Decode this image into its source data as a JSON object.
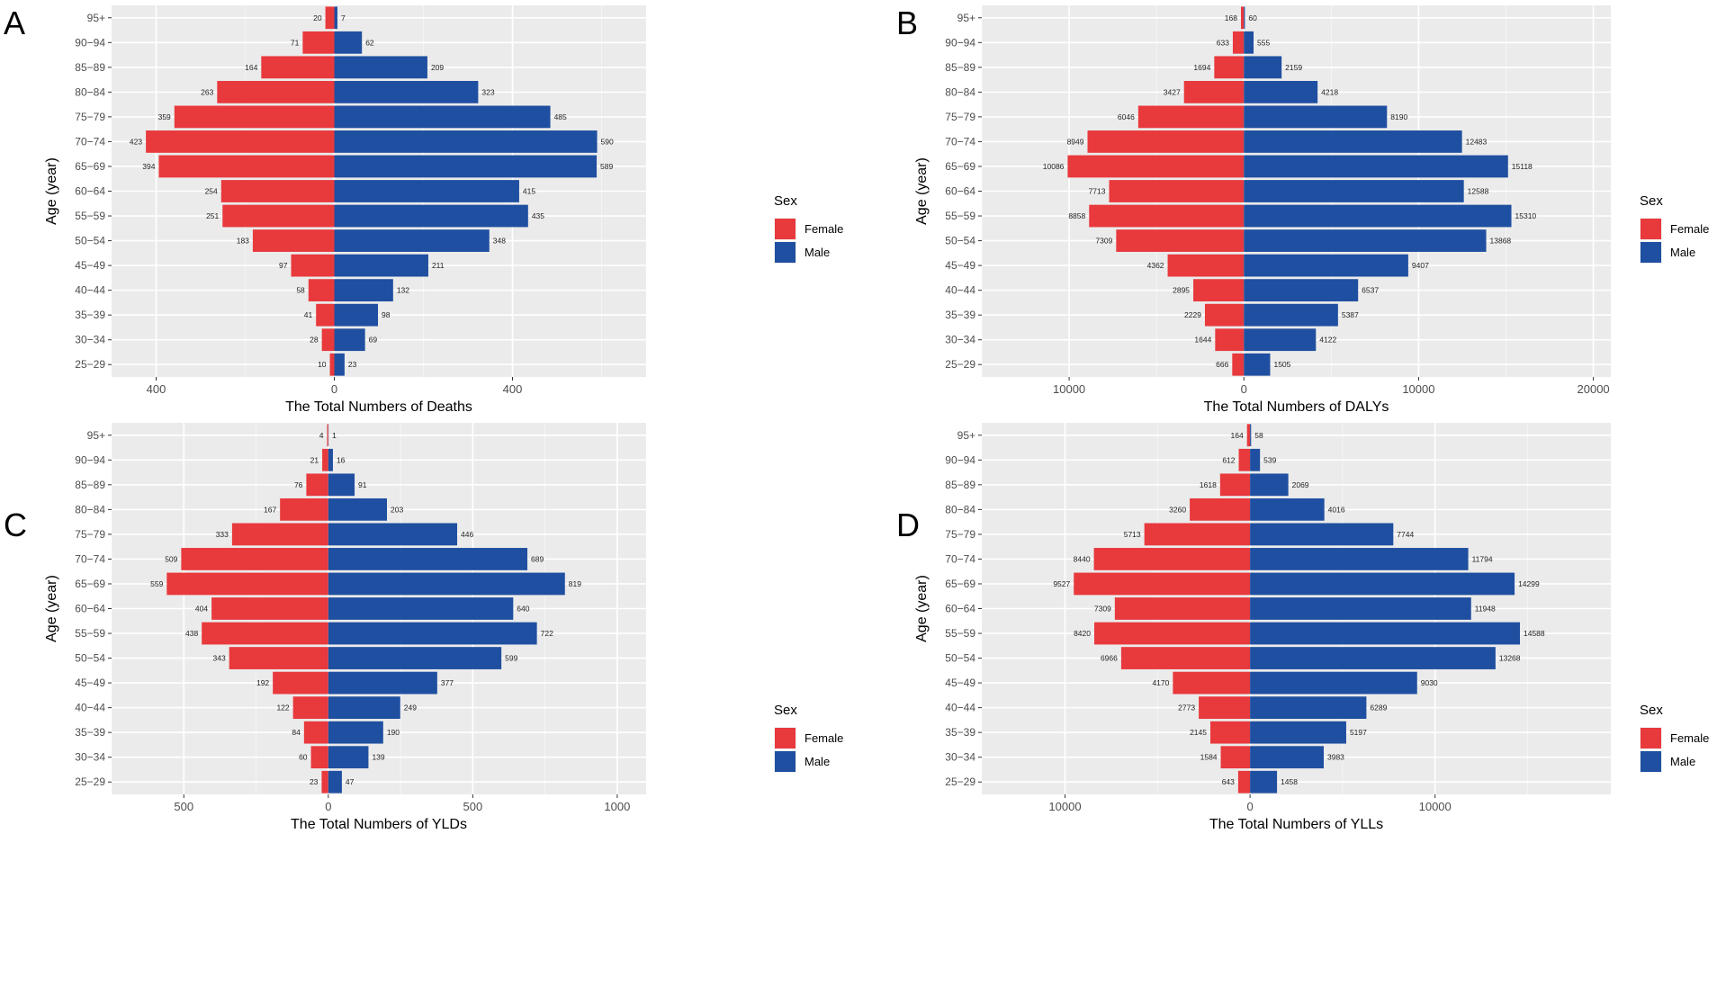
{
  "chart_data": [
    {
      "type": "bar",
      "panel": "A",
      "orientation": "horizontal-population-pyramid",
      "categories": [
        "25-29",
        "30-34",
        "35-39",
        "40-44",
        "45-49",
        "50-54",
        "55-59",
        "60-64",
        "65-69",
        "70-74",
        "75-79",
        "80-84",
        "85-89",
        "90-94",
        "95+"
      ],
      "category_labels": [
        "25−29",
        "30−34",
        "35−39",
        "40−44",
        "45−49",
        "50−54",
        "55−59",
        "60−64",
        "65−69",
        "70−74",
        "75−79",
        "80−84",
        "85−89",
        "90−94",
        "95+"
      ],
      "series": [
        {
          "name": "Female",
          "color": "#e8393c",
          "values": [
            10,
            28,
            41,
            58,
            97,
            183,
            251,
            254,
            394,
            423,
            359,
            263,
            164,
            71,
            20
          ]
        },
        {
          "name": "Male",
          "color": "#1f4fa0",
          "values": [
            23,
            69,
            98,
            132,
            211,
            348,
            435,
            415,
            589,
            590,
            485,
            323,
            209,
            62,
            7
          ]
        }
      ],
      "xlim": [
        -500,
        700
      ],
      "x_ticks": [
        -400,
        0,
        400
      ],
      "x_tick_labels": [
        "400",
        "0",
        "400"
      ],
      "xlabel": "The Total Numbers of Deaths",
      "ylabel": "Age (year)",
      "legend_title": "Sex",
      "legend_position": "right"
    },
    {
      "type": "bar",
      "panel": "B",
      "orientation": "horizontal-population-pyramid",
      "categories": [
        "25-29",
        "30-34",
        "35-39",
        "40-44",
        "45-49",
        "50-54",
        "55-59",
        "60-64",
        "65-69",
        "70-74",
        "75-79",
        "80-84",
        "85-89",
        "90-94",
        "95+"
      ],
      "category_labels": [
        "25−29",
        "30−34",
        "35−39",
        "40−44",
        "45−49",
        "50−54",
        "55−59",
        "60−64",
        "65−69",
        "70−74",
        "75−79",
        "80−84",
        "85−89",
        "90−94",
        "95+"
      ],
      "series": [
        {
          "name": "Female",
          "color": "#e8393c",
          "values": [
            666,
            1644,
            2229,
            2895,
            4362,
            7309,
            8858,
            7713,
            10086,
            8949,
            6046,
            3427,
            1694,
            633,
            168
          ]
        },
        {
          "name": "Male",
          "color": "#1f4fa0",
          "values": [
            1505,
            4122,
            5387,
            6537,
            9407,
            13868,
            15310,
            12588,
            15118,
            12483,
            8190,
            4218,
            2159,
            555,
            60
          ]
        }
      ],
      "xlim": [
        -15000,
        21000
      ],
      "x_ticks": [
        -10000,
        0,
        10000,
        20000
      ],
      "x_tick_labels": [
        "10000",
        "0",
        "10000",
        "20000"
      ],
      "xlabel": "The Total Numbers of DALYs",
      "ylabel": "Age (year)",
      "legend_title": "Sex",
      "legend_position": "right"
    },
    {
      "type": "bar",
      "panel": "C",
      "orientation": "horizontal-population-pyramid",
      "categories": [
        "25-29",
        "30-34",
        "35-39",
        "40-44",
        "45-49",
        "50-54",
        "55-59",
        "60-64",
        "65-69",
        "70-74",
        "75-79",
        "80-84",
        "85-89",
        "90-94",
        "95+"
      ],
      "category_labels": [
        "25−29",
        "30−34",
        "35−39",
        "40−44",
        "45−49",
        "50−54",
        "55−59",
        "60−64",
        "65−69",
        "70−74",
        "75−79",
        "80−84",
        "85−89",
        "90−94",
        "95+"
      ],
      "series": [
        {
          "name": "Female",
          "color": "#e8393c",
          "values": [
            23,
            60,
            84,
            122,
            192,
            343,
            438,
            404,
            559,
            509,
            333,
            167,
            76,
            21,
            4
          ]
        },
        {
          "name": "Male",
          "color": "#1f4fa0",
          "values": [
            47,
            139,
            190,
            249,
            377,
            599,
            722,
            640,
            819,
            689,
            446,
            203,
            91,
            16,
            1
          ]
        }
      ],
      "xlim": [
        -750,
        1100
      ],
      "x_ticks": [
        -500,
        0,
        500,
        1000
      ],
      "x_tick_labels": [
        "500",
        "0",
        "500",
        "1000"
      ],
      "xlabel": "The Total Numbers of YLDs",
      "ylabel": "Age (year)",
      "legend_title": "Sex",
      "legend_position": "right"
    },
    {
      "type": "bar",
      "panel": "D",
      "orientation": "horizontal-population-pyramid",
      "categories": [
        "25-29",
        "30-34",
        "35-39",
        "40-44",
        "45-49",
        "50-54",
        "55-59",
        "60-64",
        "65-69",
        "70-74",
        "75-79",
        "80-84",
        "85-89",
        "90-94",
        "95+"
      ],
      "category_labels": [
        "25−29",
        "30−34",
        "35−39",
        "40−44",
        "45−49",
        "50−54",
        "55−59",
        "60−64",
        "65−69",
        "70−74",
        "75−79",
        "80−84",
        "85−89",
        "90−94",
        "95+"
      ],
      "series": [
        {
          "name": "Female",
          "color": "#e8393c",
          "values": [
            643,
            1584,
            2145,
            2773,
            4170,
            6966,
            8420,
            7309,
            9527,
            8440,
            5713,
            3260,
            1618,
            612,
            164
          ]
        },
        {
          "name": "Male",
          "color": "#1f4fa0",
          "values": [
            1458,
            3983,
            5197,
            6289,
            9030,
            13268,
            14588,
            11948,
            14299,
            11794,
            7744,
            4016,
            2069,
            539,
            58
          ]
        }
      ],
      "xlim": [
        -14500,
        19500
      ],
      "x_ticks": [
        -10000,
        0,
        10000
      ],
      "x_tick_labels": [
        "10000",
        "0",
        "10000"
      ],
      "xlabel": "The Total Numbers of YLLs",
      "ylabel": "Age (year)",
      "legend_title": "Sex",
      "legend_position": "right"
    }
  ],
  "colors": {
    "panel_background": "#ebebeb",
    "grid": "#ffffff",
    "female": "#e8393c",
    "male": "#1f4fa0"
  }
}
